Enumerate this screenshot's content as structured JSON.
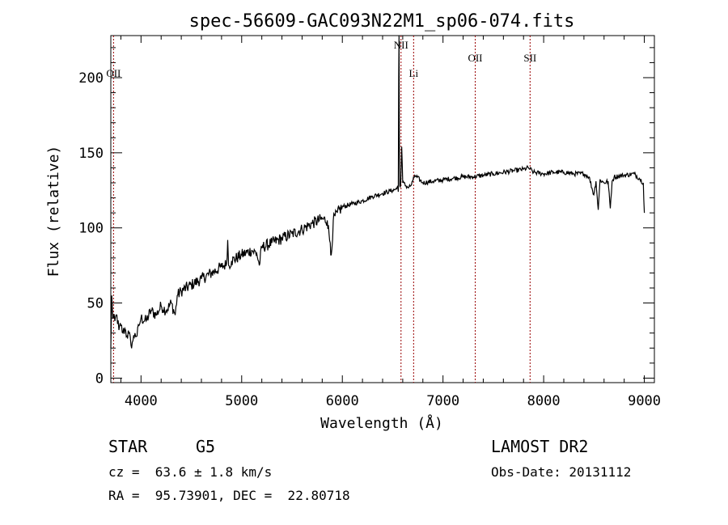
{
  "chart_data": {
    "type": "line",
    "title": "spec-56609-GAC093N22M1_sp06-074.fits",
    "xlabel": "Wavelength (Å)",
    "ylabel": "Flux (relative)",
    "xlim": [
      3700,
      9100
    ],
    "ylim": [
      -3,
      228
    ],
    "x_ticks": [
      4000,
      5000,
      6000,
      7000,
      8000,
      9000
    ],
    "y_ticks": [
      0,
      50,
      100,
      150,
      200
    ],
    "grid": false,
    "series": [
      {
        "x": [
          3700,
          3710,
          3720,
          3740,
          3760,
          3780,
          3800,
          3820,
          3840,
          3860,
          3880,
          3900,
          3920,
          3940,
          3960,
          3980,
          4000,
          4050,
          4100,
          4150,
          4200,
          4250,
          4300,
          4340,
          4360,
          4400,
          4500,
          4600,
          4700,
          4800,
          4850,
          4861,
          4870,
          4900,
          5000,
          5100,
          5150,
          5175,
          5200,
          5300,
          5400,
          5500,
          5600,
          5700,
          5800,
          5850,
          5880,
          5890,
          5896,
          5910,
          5950,
          6000,
          6100,
          6200,
          6300,
          6400,
          6500,
          6540,
          6550,
          6556,
          6560,
          6563,
          6566,
          6570,
          6575,
          6580,
          6590,
          6600,
          6650,
          6680,
          6700,
          6720,
          6800,
          6900,
          7000,
          7100,
          7200,
          7300,
          7400,
          7500,
          7600,
          7700,
          7800,
          7850,
          7900,
          8000,
          8100,
          8200,
          8300,
          8400,
          8450,
          8498,
          8520,
          8542,
          8560,
          8600,
          8640,
          8662,
          8680,
          8700,
          8800,
          8900,
          8950,
          8990,
          9000
        ],
        "y": [
          20,
          55,
          40,
          38,
          42,
          32,
          35,
          30,
          33,
          28,
          30,
          22,
          25,
          30,
          28,
          35,
          40,
          38,
          45,
          42,
          48,
          45,
          50,
          42,
          55,
          58,
          62,
          66,
          70,
          74,
          76,
          92,
          75,
          78,
          82,
          85,
          83,
          75,
          87,
          90,
          93,
          96,
          99,
          103,
          106,
          105,
          90,
          82,
          86,
          105,
          110,
          114,
          116,
          118,
          121,
          123,
          125,
          126,
          128,
          124,
          200,
          228,
          160,
          128,
          127,
          130,
          154,
          130,
          127,
          128,
          131,
          135,
          130,
          131,
          132,
          133,
          134,
          134,
          135,
          136,
          137,
          138,
          139,
          140,
          137,
          136,
          137,
          137,
          136,
          136,
          134,
          122,
          131,
          112,
          132,
          130,
          131,
          113,
          131,
          134,
          135,
          136,
          133,
          130,
          110
        ]
      }
    ],
    "lines": [
      {
        "label": "OII",
        "x": 3727
      },
      {
        "label": "NII",
        "x": 6583
      },
      {
        "label": "Li",
        "x": 6708
      },
      {
        "label": "OII",
        "x": 7320
      },
      {
        "label": "SII",
        "x": 7865
      }
    ]
  },
  "info": {
    "class": "STAR",
    "subclass": "G5",
    "survey": "LAMOST DR2",
    "cz": "cz =  63.6 ± 1.8 km/s",
    "obs_date": "Obs-Date: 20131112",
    "radec": "RA =  95.73901, DEC =  22.80718"
  }
}
